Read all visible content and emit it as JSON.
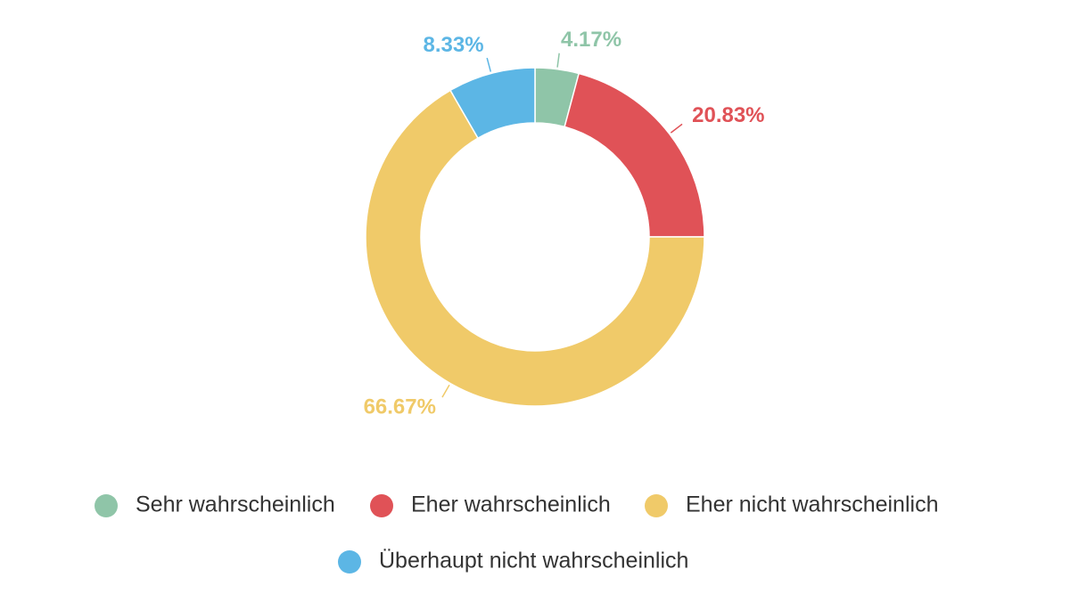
{
  "chart_data": {
    "type": "donut",
    "categories": [
      "Sehr wahrscheinlich",
      "Eher wahrscheinlich",
      "Eher nicht wahrscheinlich",
      "Überhaupt nicht wahrscheinlich"
    ],
    "values": [
      4.17,
      20.83,
      66.67,
      8.33
    ],
    "value_labels": [
      "4.17%",
      "20.83%",
      "66.67%",
      "8.33%"
    ],
    "colors": [
      "#8fc5a8",
      "#e05257",
      "#f0ca69",
      "#5cb6e5"
    ],
    "legend": "bottom"
  }
}
